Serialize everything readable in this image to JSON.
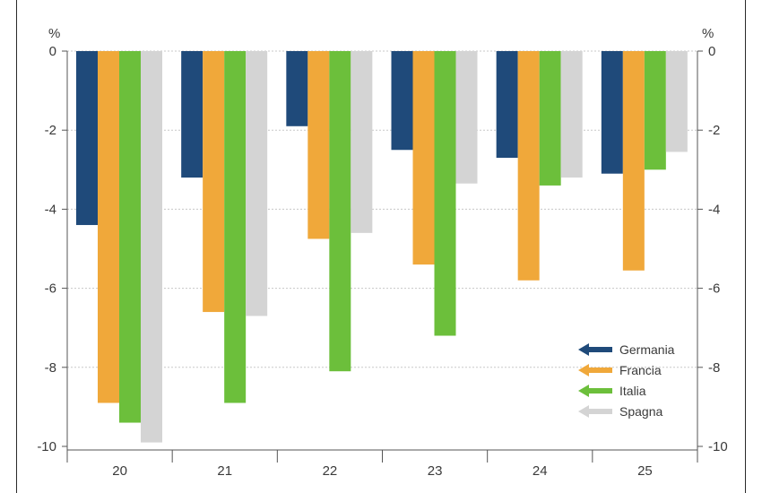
{
  "chart_data": {
    "type": "bar",
    "title": "",
    "xlabel": "",
    "ylabel": "%",
    "ylabel_right": "%",
    "categories": [
      "20",
      "21",
      "22",
      "23",
      "24",
      "25"
    ],
    "ylim": [
      -10,
      0
    ],
    "yticks": [
      0,
      -2,
      -4,
      -6,
      -8,
      -10
    ],
    "ytick_labels": [
      "0",
      "-2",
      "-4",
      "-6",
      "-8",
      "-10"
    ],
    "grid": true,
    "legend_position": "bottom-right",
    "series": [
      {
        "name": "Germania",
        "color": "#1f4a7a",
        "values": [
          -4.4,
          -3.2,
          -1.9,
          -2.5,
          -2.7,
          -3.1
        ]
      },
      {
        "name": "Francia",
        "color": "#f0a83a",
        "values": [
          -8.9,
          -6.6,
          -4.75,
          -5.4,
          -5.8,
          -5.55
        ]
      },
      {
        "name": "Italia",
        "color": "#6cbf3b",
        "values": [
          -9.4,
          -8.9,
          -8.1,
          -7.2,
          -3.4,
          -3.0
        ]
      },
      {
        "name": "Spagna",
        "color": "#d4d4d4",
        "values": [
          -9.9,
          -6.7,
          -4.6,
          -3.35,
          -3.2,
          -2.55
        ]
      }
    ]
  }
}
